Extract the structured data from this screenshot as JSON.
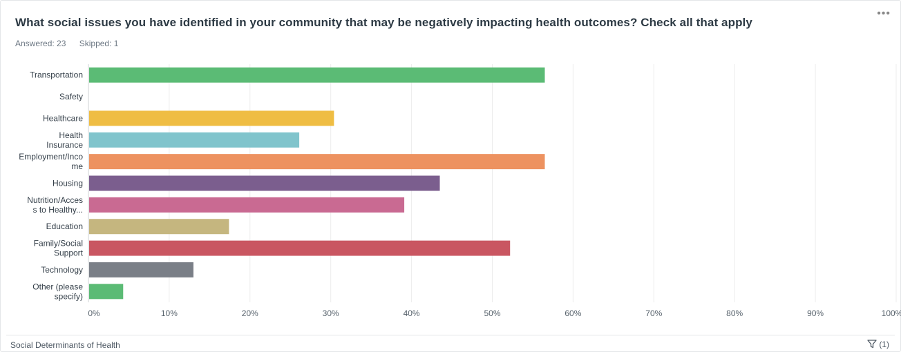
{
  "question": "What social issues you have identified  in your community that may be negatively impacting health outcomes? Check all that apply",
  "answered": "Answered: 23",
  "skipped": "Skipped: 1",
  "footer_label": "Social Determinants of Health",
  "filter_count": "(1)",
  "more_icon": "more-options-icon",
  "chart_data": {
    "type": "bar",
    "orientation": "horizontal",
    "categories": [
      [
        "Transportation"
      ],
      [
        "Safety"
      ],
      [
        "Healthcare"
      ],
      [
        "Health",
        "Insurance"
      ],
      [
        "Employment/Inco",
        "me"
      ],
      [
        "Housing"
      ],
      [
        "Nutrition/Acces",
        "s to Healthy..."
      ],
      [
        "Education"
      ],
      [
        "Family/Social",
        "Support"
      ],
      [
        "Technology"
      ],
      [
        "Other (please",
        "specify)"
      ]
    ],
    "values": [
      56.5,
      0,
      30.4,
      26.1,
      56.5,
      43.5,
      39.1,
      17.4,
      52.2,
      13.0,
      4.3
    ],
    "colors": [
      "#5bbb75",
      "#cccccc",
      "#efbd43",
      "#80c4cc",
      "#ed9260",
      "#7b5e8e",
      "#c96a92",
      "#c5b67f",
      "#c95661",
      "#7a7f87",
      "#5bbb75"
    ],
    "ticks": [
      "0%",
      "10%",
      "20%",
      "30%",
      "40%",
      "50%",
      "60%",
      "70%",
      "80%",
      "90%",
      "100%"
    ],
    "xlim": [
      0,
      100
    ],
    "grid": true
  }
}
